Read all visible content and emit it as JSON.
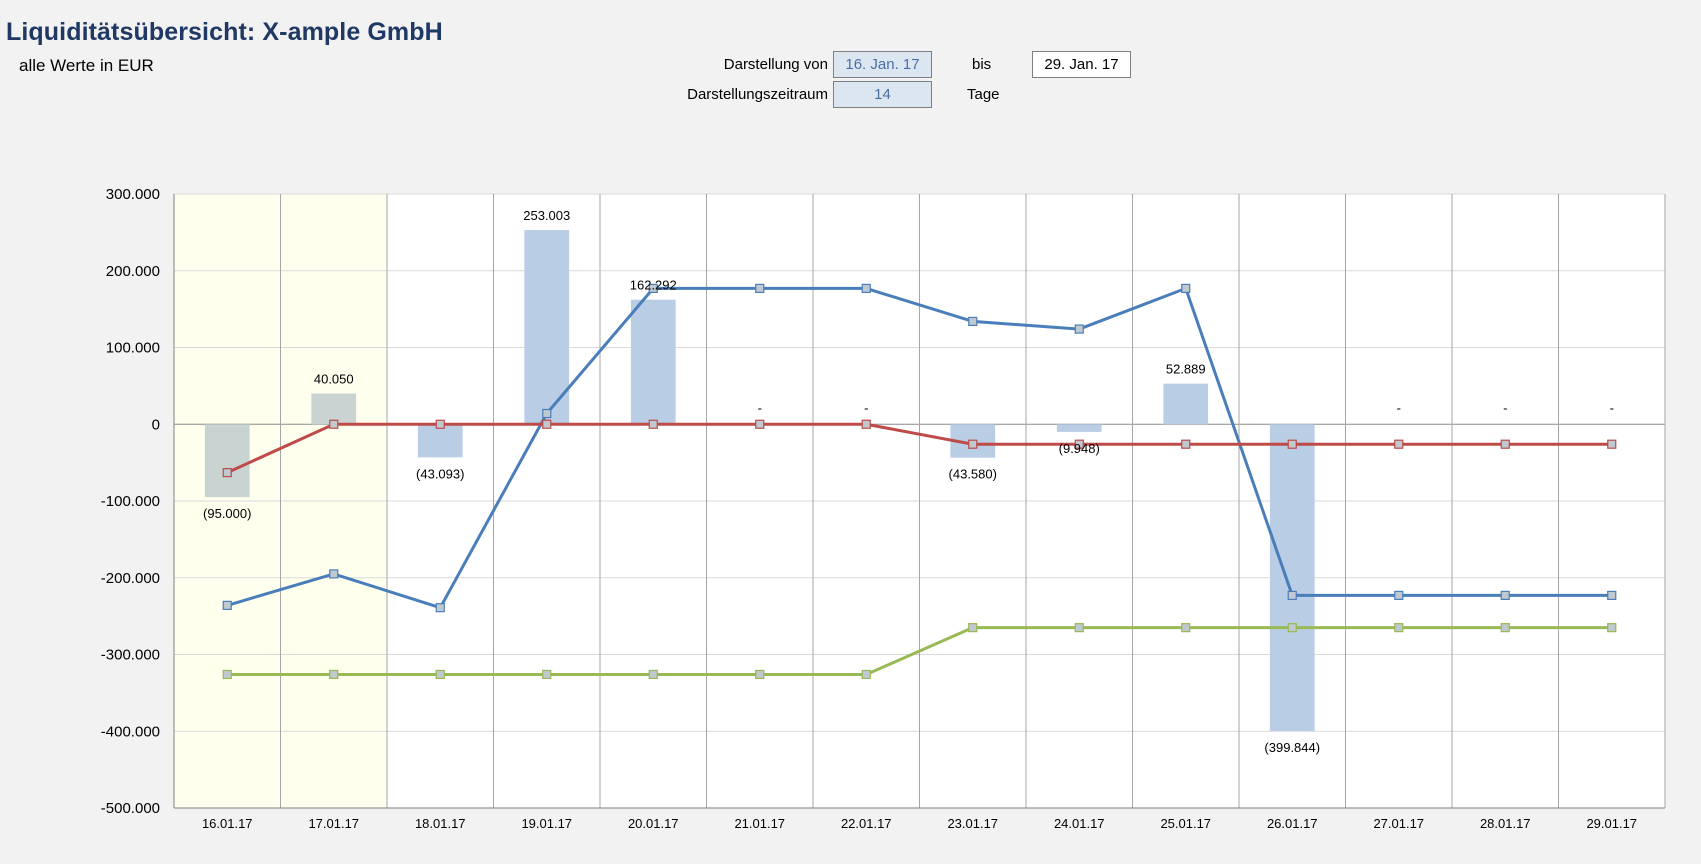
{
  "header": {
    "title": "Liquiditätsübersicht: X-ample GmbH",
    "subtitle": "alle Werte in EUR"
  },
  "controls": {
    "from_label": "Darstellung von",
    "from_value": "16. Jan. 17",
    "to_label": "bis",
    "to_value": "29. Jan. 17",
    "period_label": "Darstellungszeitraum",
    "period_value": "14",
    "period_unit": "Tage"
  },
  "colors": {
    "bar": "#b9cde5",
    "bar_highlighted": "#c9d4d2",
    "highlight_bg": "#ffffee",
    "line_blue": "#4a7ebb",
    "line_red": "#be4b48",
    "line_green": "#98b954",
    "grid": "#d9d9d9",
    "vgrid": "#a6a6a6"
  },
  "chart_data": {
    "type": "bar",
    "categories": [
      "16.01.17",
      "17.01.17",
      "18.01.17",
      "19.01.17",
      "20.01.17",
      "21.01.17",
      "22.01.17",
      "23.01.17",
      "24.01.17",
      "25.01.17",
      "26.01.17",
      "27.01.17",
      "28.01.17",
      "29.01.17"
    ],
    "highlighted_categories": [
      0,
      1
    ],
    "ylim": [
      -500000,
      300000
    ],
    "yticks": [
      300000,
      200000,
      100000,
      0,
      -100000,
      -200000,
      -300000,
      -400000,
      -500000
    ],
    "ytick_labels": [
      "300.000",
      "200.000",
      "100.000",
      "0",
      "-100.000",
      "-200.000",
      "-300.000",
      "-400.000",
      "-500.000"
    ],
    "bars": {
      "values": [
        -95000,
        40050,
        -43093,
        253003,
        162292,
        0,
        0,
        -43580,
        -9948,
        52889,
        -399844,
        0,
        0,
        0
      ],
      "labels": [
        "(95.000)",
        "40.050",
        "(43.093)",
        "253.003",
        "162.292",
        "-",
        "-",
        "(43.580)",
        "(9.948)",
        "52.889",
        "(399.844)",
        "-",
        "-",
        "-"
      ]
    },
    "series": [
      {
        "type": "line",
        "color_key": "line_blue",
        "values": [
          -236000,
          -195000,
          -239000,
          14000,
          177000,
          177000,
          177000,
          134000,
          124000,
          177000,
          -223000,
          -223000,
          -223000,
          -223000
        ]
      },
      {
        "type": "line",
        "color_key": "line_red",
        "values": [
          -63000,
          0,
          0,
          0,
          0,
          0,
          0,
          -26000,
          -26000,
          -26000,
          -26000,
          -26000,
          -26000,
          -26000
        ]
      },
      {
        "type": "line",
        "color_key": "line_green",
        "values": [
          -326000,
          -326000,
          -326000,
          -326000,
          -326000,
          -326000,
          -326000,
          -265000,
          -265000,
          -265000,
          -265000,
          -265000,
          -265000,
          -265000
        ]
      }
    ],
    "grid": true,
    "legend": "none"
  }
}
